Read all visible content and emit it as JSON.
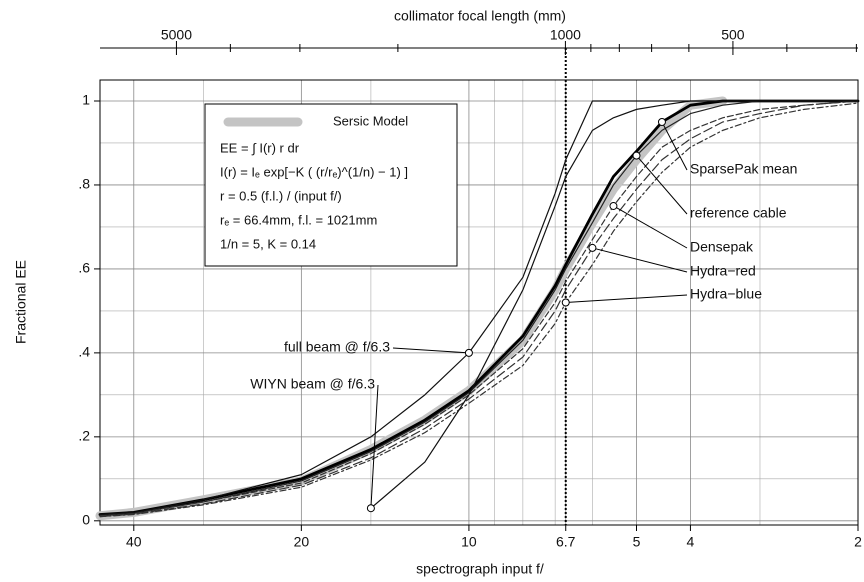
{
  "chart_data": {
    "type": "line",
    "xlabel": "spectrograph input f/",
    "ylabel": "Fractional EE",
    "x2label": "collimator focal length (mm)",
    "x": [
      46,
      40,
      30,
      20,
      15,
      12,
      10,
      8,
      7,
      6.7,
      6,
      5.5,
      5,
      4.5,
      4,
      3.5,
      3,
      2.5,
      2
    ],
    "xlim": [
      46,
      2
    ],
    "xscale": "log",
    "xticks": [
      40,
      20,
      10,
      6.7,
      5,
      4,
      2
    ],
    "xminor": [
      30,
      15,
      9,
      8,
      7,
      6,
      3
    ],
    "x2lim": [
      6860,
      298
    ],
    "x2ticks": [
      5000,
      1000,
      500
    ],
    "x2minor": [
      4000,
      3000,
      2000,
      900,
      800,
      700,
      600,
      400,
      300
    ],
    "ylim": [
      -0.01,
      1.05
    ],
    "yticks": [
      0,
      {
        "value": 0.2,
        "label": ".2"
      },
      {
        "value": 0.4,
        "label": ".4"
      },
      {
        "value": 0.6,
        "label": ".6"
      },
      {
        "value": 0.8,
        "label": ".8"
      },
      1
    ],
    "yminor": [
      0.1,
      0.3,
      0.5,
      0.7,
      0.9
    ],
    "grid": true,
    "marker_line": 6.7,
    "legend_lines": [
      "EE = ∫ I(r) r dr",
      "I(r) = Iₑ exp[−K ( (r/rₑ)^(1/n) − 1) ]",
      "r = 0.5 (f.l.) / (input f/)",
      "rₑ = 66.4mm,    f.l. = 1021mm",
      "1/n = 5,          K = 0.14"
    ],
    "series": [
      {
        "name": "Sersic Model",
        "color": "#c4c4c4",
        "values": [
          0.012,
          0.02,
          0.05,
          0.095,
          0.17,
          0.24,
          0.31,
          0.43,
          0.55,
          0.6,
          0.71,
          0.79,
          0.86,
          0.93,
          0.99,
          1.0,
          null,
          null,
          null
        ]
      },
      {
        "name": "SparsePak mean",
        "color": "#000000",
        "values": [
          0.015,
          0.02,
          0.05,
          0.1,
          0.17,
          0.24,
          0.31,
          0.44,
          0.56,
          0.61,
          0.73,
          0.82,
          0.88,
          0.95,
          0.99,
          1,
          1,
          1,
          1
        ]
      },
      {
        "name": "reference cable",
        "color": "#222222",
        "values": [
          0.012,
          0.018,
          0.045,
          0.095,
          0.165,
          0.235,
          0.305,
          0.43,
          0.55,
          0.6,
          0.71,
          0.8,
          0.87,
          0.93,
          0.97,
          0.99,
          1,
          1,
          1
        ]
      },
      {
        "name": "Densepak",
        "color": "#333333",
        "values": [
          0.012,
          0.018,
          0.045,
          0.09,
          0.16,
          0.23,
          0.3,
          0.41,
          0.52,
          0.57,
          0.67,
          0.75,
          0.82,
          0.89,
          0.93,
          0.96,
          0.98,
          0.99,
          1
        ]
      },
      {
        "name": "Hydra−red",
        "color": "#333333",
        "values": [
          0.01,
          0.016,
          0.04,
          0.085,
          0.15,
          0.22,
          0.29,
          0.39,
          0.5,
          0.55,
          0.65,
          0.72,
          0.79,
          0.86,
          0.91,
          0.95,
          0.97,
          0.99,
          1
        ]
      },
      {
        "name": "Hydra−blue",
        "color": "#333333",
        "values": [
          0.01,
          0.015,
          0.038,
          0.08,
          0.145,
          0.21,
          0.28,
          0.37,
          0.47,
          0.52,
          0.61,
          0.69,
          0.76,
          0.83,
          0.89,
          0.93,
          0.96,
          0.98,
          0.995
        ]
      },
      {
        "name": "full beam @ f/6.3",
        "color": "#111111",
        "values": [
          0.015,
          0.02,
          0.05,
          0.11,
          0.2,
          0.3,
          0.4,
          0.58,
          0.78,
          0.86,
          1,
          1,
          1,
          1,
          1,
          1,
          1,
          1,
          1
        ]
      },
      {
        "name": "WIYN beam @ f/6.3",
        "color": "#111111",
        "values": [
          null,
          null,
          null,
          null,
          0.03,
          0.14,
          0.3,
          0.55,
          0.75,
          0.82,
          0.93,
          0.96,
          0.98,
          0.99,
          1,
          1,
          1,
          1,
          1
        ]
      }
    ]
  }
}
